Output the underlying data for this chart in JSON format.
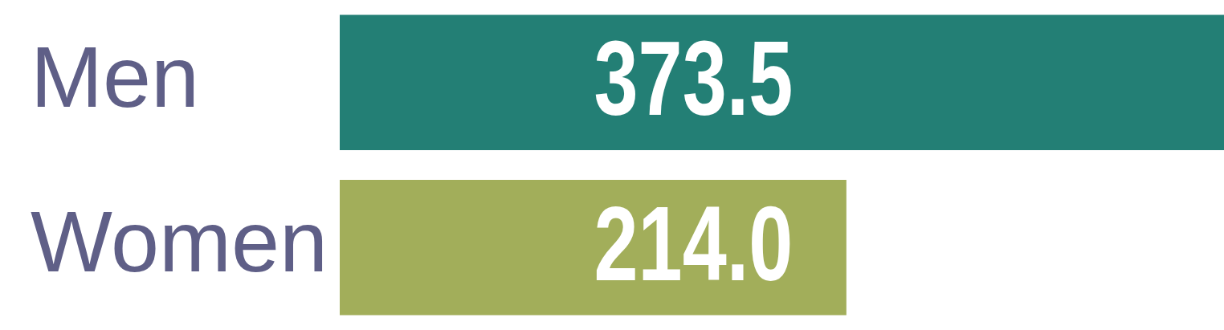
{
  "chart_data": {
    "type": "bar",
    "orientation": "horizontal",
    "categories": [
      "Men",
      "Women"
    ],
    "values": [
      373.5,
      214.0
    ],
    "colors": [
      "#237f75",
      "#a2ae5a"
    ],
    "value_labels": [
      "373.5",
      "214.0"
    ],
    "legend": false
  }
}
